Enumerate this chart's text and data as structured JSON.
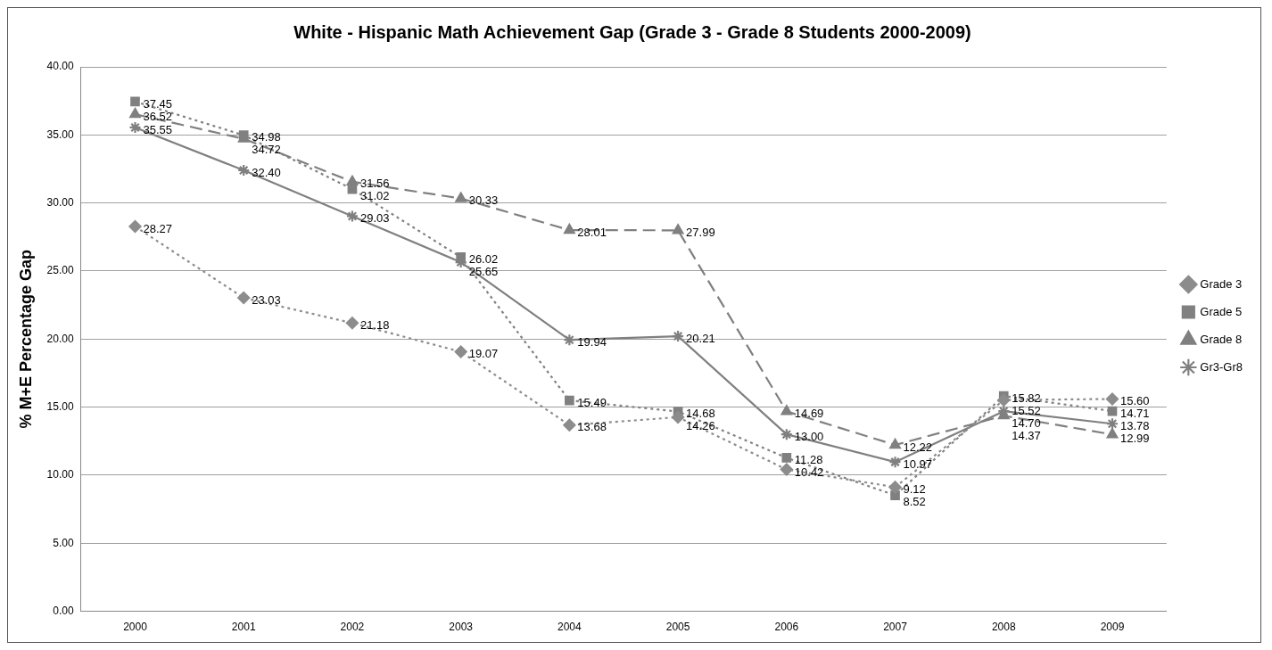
{
  "chart_data": {
    "type": "line",
    "title": "White - Hispanic Math Achievement Gap (Grade 3 - Grade 8 Students 2000-2009)",
    "ylabel": "% M+E Percentage Gap",
    "categories": [
      "2000",
      "2001",
      "2002",
      "2003",
      "2004",
      "2005",
      "2006",
      "2007",
      "2008",
      "2009"
    ],
    "series": [
      {
        "name": "Grade 3",
        "color": "#8c8c8c",
        "marker": "diamond",
        "line_style": "dotted",
        "values": [
          28.27,
          23.03,
          21.18,
          19.07,
          13.68,
          14.26,
          10.42,
          9.12,
          15.52,
          15.6
        ],
        "value_labels": [
          "28.27",
          "23.03",
          "21.18",
          "19.07",
          "13.68",
          "14.26",
          "10.42",
          "9.12",
          "15.52",
          "15.60"
        ]
      },
      {
        "name": "Grade 5",
        "color": "#808080",
        "marker": "square",
        "line_style": "dotted",
        "values": [
          37.45,
          34.98,
          31.02,
          26.02,
          15.49,
          14.68,
          11.28,
          8.52,
          15.82,
          14.71
        ],
        "value_labels": [
          "37.45",
          "34.98",
          "31.02",
          "26.02",
          "15.49",
          "14.68",
          "11.28",
          "8.52",
          "15.82",
          "14.71"
        ]
      },
      {
        "name": "Grade 8",
        "color": "#808080",
        "marker": "triangle",
        "line_style": "dashed",
        "values": [
          36.52,
          34.72,
          31.56,
          30.33,
          28.01,
          27.99,
          14.69,
          12.22,
          14.37,
          12.99
        ],
        "value_labels": [
          "36.52",
          "34.72",
          "31.56",
          "30.33",
          "28.01",
          "27.99",
          "14.69",
          "12.22",
          "14.37",
          "12.99"
        ]
      },
      {
        "name": "Gr3-Gr8",
        "color": "#808080",
        "marker": "cross",
        "line_style": "solid",
        "values": [
          35.55,
          32.4,
          29.03,
          25.65,
          19.94,
          20.21,
          13.0,
          10.97,
          14.7,
          13.78
        ],
        "value_labels": [
          "35.55",
          "32.40",
          "29.03",
          "25.65",
          "19.94",
          "20.21",
          "13.00",
          "10.97",
          "14.70",
          "13.78"
        ]
      }
    ],
    "ylim": [
      0,
      40
    ],
    "yticks": [
      {
        "value": 0,
        "label": "0.00"
      },
      {
        "value": 5,
        "label": "5.00"
      },
      {
        "value": 10,
        "label": "10.00"
      },
      {
        "value": 15,
        "label": "15.00"
      },
      {
        "value": 20,
        "label": "20.00"
      },
      {
        "value": 25,
        "label": "25.00"
      },
      {
        "value": 30,
        "label": "30.00"
      },
      {
        "value": 35,
        "label": "35.00"
      },
      {
        "value": 40,
        "label": "40.00"
      }
    ],
    "grid": "y",
    "legend": "right"
  }
}
